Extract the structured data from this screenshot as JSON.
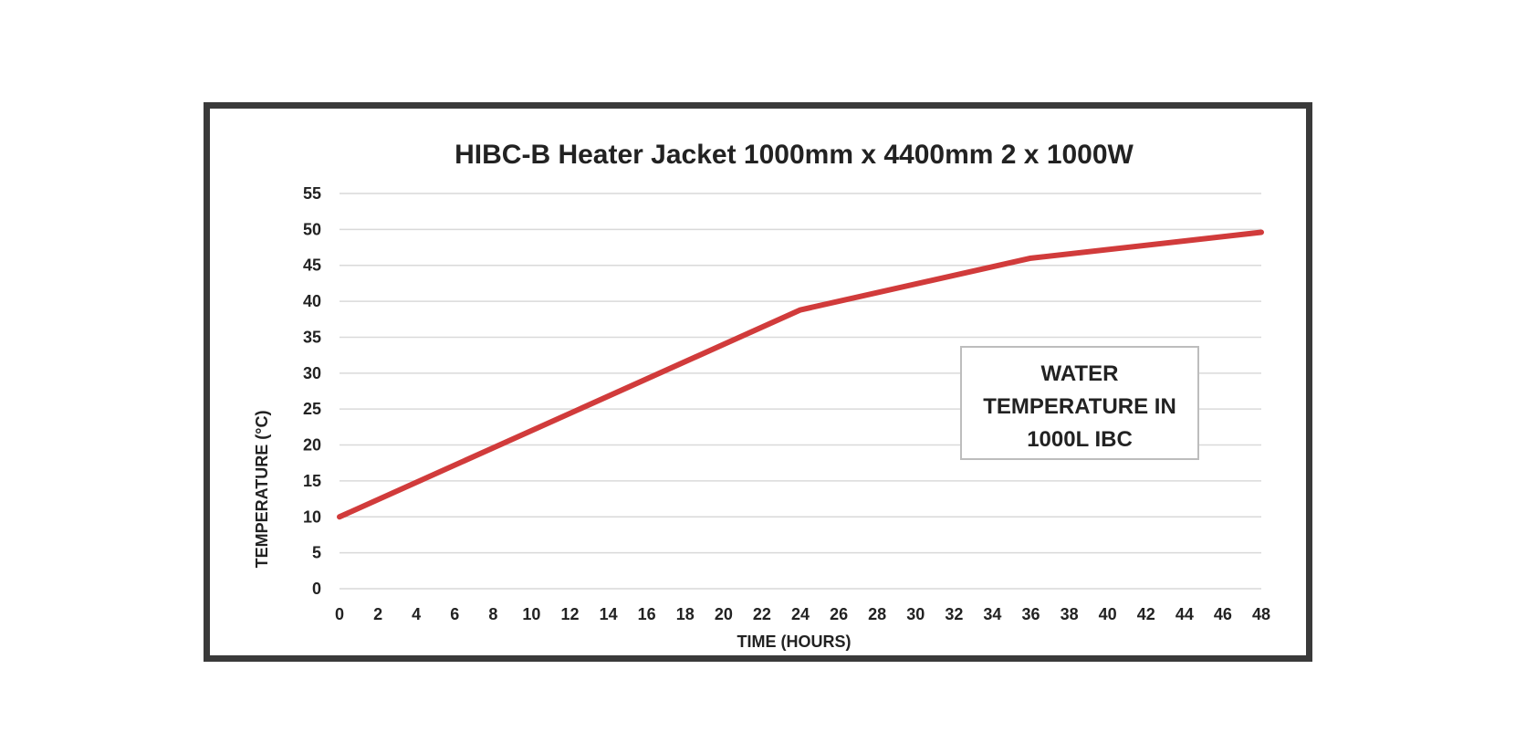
{
  "chart_data": {
    "type": "line",
    "title": "HIBC-B Heater Jacket 1000mm x 4400mm 2 x 1000W",
    "xlabel": "TIME (HOURS)",
    "ylabel": "TEMPERATURE (°C)",
    "xlim": [
      0,
      48
    ],
    "ylim": [
      0,
      55
    ],
    "x_ticks": [
      0,
      2,
      4,
      6,
      8,
      10,
      12,
      14,
      16,
      18,
      20,
      22,
      24,
      26,
      28,
      30,
      32,
      34,
      36,
      38,
      40,
      42,
      44,
      46,
      48
    ],
    "y_ticks": [
      0,
      5,
      10,
      15,
      20,
      25,
      30,
      35,
      40,
      45,
      50,
      55
    ],
    "grid": "horizontal",
    "annotation": [
      "WATER",
      "TEMPERATURE IN",
      "1000L IBC"
    ],
    "series": [
      {
        "color": "#d13b3b",
        "x": [
          0,
          24,
          36,
          48
        ],
        "y": [
          10,
          38.8,
          46,
          49.6
        ]
      }
    ]
  }
}
